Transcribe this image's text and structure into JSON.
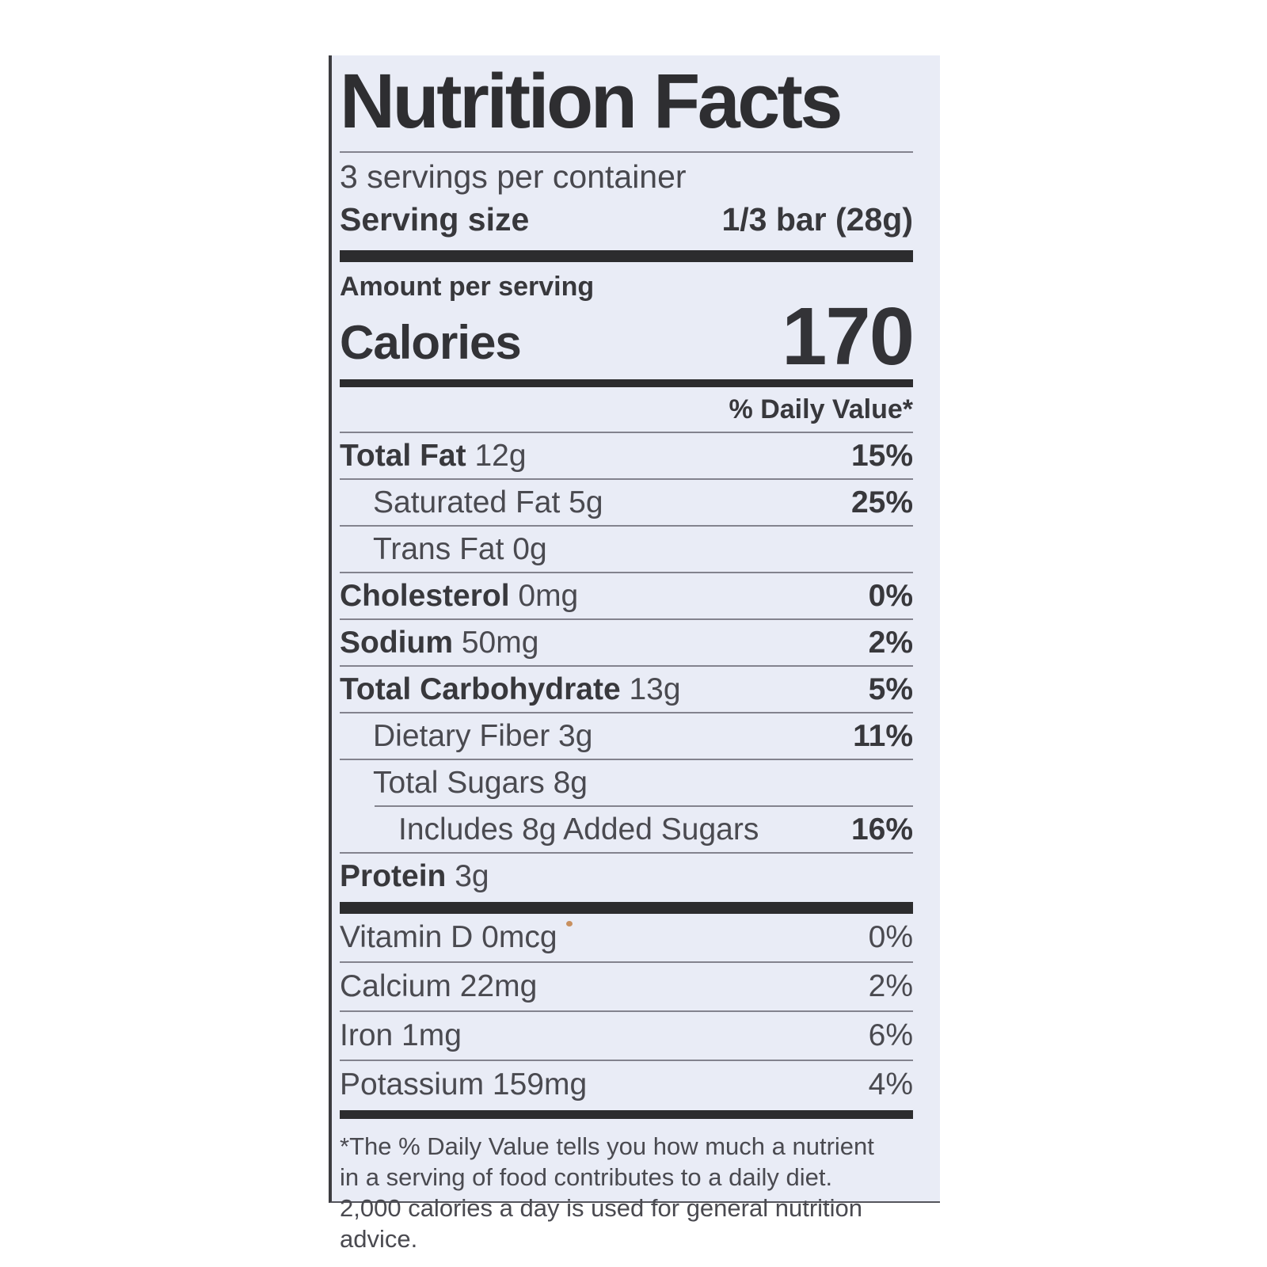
{
  "label": {
    "title": "Nutrition Facts",
    "servings_per_container": "3 servings per container",
    "serving_size_label": "Serving size",
    "serving_size_value": "1/3 bar (28g)",
    "amount_per_serving": "Amount per serving",
    "calories_label": "Calories",
    "calories_value": "170",
    "daily_value_header": "% Daily Value*",
    "nutrients": [
      {
        "bold": "Total Fat",
        "rest": " 12g",
        "dv": "15%"
      },
      {
        "bold": "",
        "rest": "Saturated Fat 5g",
        "dv": "25%"
      },
      {
        "bold": "",
        "rest": "Trans Fat 0g",
        "dv": ""
      },
      {
        "bold": "Cholesterol",
        "rest": " 0mg",
        "dv": "0%"
      },
      {
        "bold": "Sodium",
        "rest": " 50mg",
        "dv": "2%"
      },
      {
        "bold": "Total Carbohydrate",
        "rest": " 13g",
        "dv": "5%"
      },
      {
        "bold": "",
        "rest": "Dietary Fiber 3g",
        "dv": "11%"
      },
      {
        "bold": "",
        "rest": "Total Sugars 8g",
        "dv": ""
      },
      {
        "bold": "",
        "rest": "Includes 8g Added Sugars",
        "dv": "16%"
      },
      {
        "bold": "Protein",
        "rest": " 3g",
        "dv": ""
      }
    ],
    "micronutrients": [
      {
        "label": "Vitamin D 0mcg",
        "dv": "0%"
      },
      {
        "label": "Calcium 22mg",
        "dv": "2%"
      },
      {
        "label": "Iron 1mg",
        "dv": "6%"
      },
      {
        "label": "Potassium 159mg",
        "dv": "4%"
      }
    ],
    "footnote": "*The % Daily Value tells you how much a nutrient in a serving of food contributes to a daily diet. 2,000 calories a day is used for general nutrition advice."
  },
  "colors": {
    "label_bg": "#e9ecf6",
    "text": "#3f3f44",
    "bar": "#2c2c2e",
    "hairline": "#83838e",
    "artifact_dot": "#c8905f"
  }
}
